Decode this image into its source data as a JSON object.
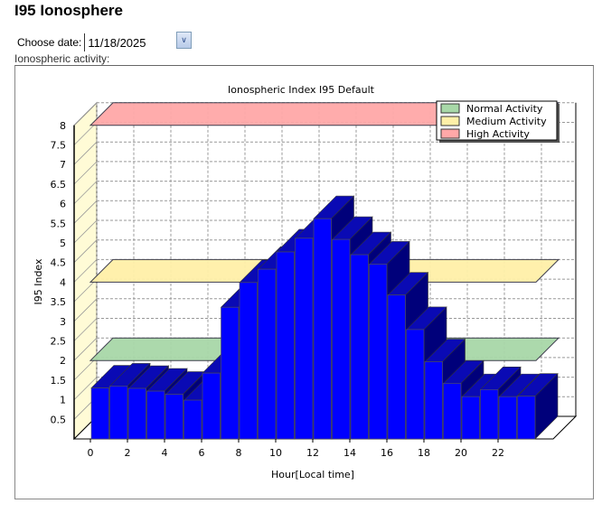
{
  "page_title": "I95 Ionosphere",
  "date_label": "Choose date:",
  "date_value": "11/18/2025",
  "activity_label": "Ionospheric activity:",
  "chart_data": {
    "type": "bar",
    "title": "Ionospheric Index I95 Default",
    "xlabel": "Hour[Local time]",
    "ylabel": "I95 Index",
    "ylim": [
      0,
      8
    ],
    "yticks": [
      "0.5",
      "1",
      "1.5",
      "2",
      "2.5",
      "3",
      "3.5",
      "4",
      "4.5",
      "5",
      "5.5",
      "6",
      "6.5",
      "7",
      "7.5",
      "8"
    ],
    "xticks": [
      "0",
      "2",
      "4",
      "6",
      "8",
      "10",
      "12",
      "14",
      "16",
      "18",
      "20",
      "22"
    ],
    "categories": [
      0,
      1,
      2,
      3,
      4,
      5,
      6,
      7,
      8,
      9,
      10,
      11,
      12,
      13,
      14,
      15,
      16,
      17,
      18,
      19,
      20,
      21,
      22,
      23
    ],
    "values": [
      1.3,
      1.35,
      1.29,
      1.22,
      1.14,
      0.99,
      1.68,
      3.36,
      3.99,
      4.33,
      4.77,
      5.12,
      5.62,
      5.09,
      4.7,
      4.46,
      3.67,
      2.79,
      1.97,
      1.42,
      1.08,
      1.26,
      1.08,
      1.09
    ],
    "thresholds": [
      {
        "name": "Normal Activity",
        "value": 2,
        "color": "#a8d8a8"
      },
      {
        "name": "Medium Activity",
        "value": 4,
        "color": "#fff0a8"
      },
      {
        "name": "High Activity",
        "value": 8,
        "color": "#ffa8a8"
      }
    ],
    "legend": [
      "Normal Activity",
      "Medium Activity",
      "High Activity"
    ],
    "legend_position": "top-right",
    "grid": true,
    "colors": {
      "bar_front": "#0000ff",
      "bar_top": "#0a0ab4",
      "bar_side": "#00007a",
      "wall": "#fffbd6"
    }
  }
}
